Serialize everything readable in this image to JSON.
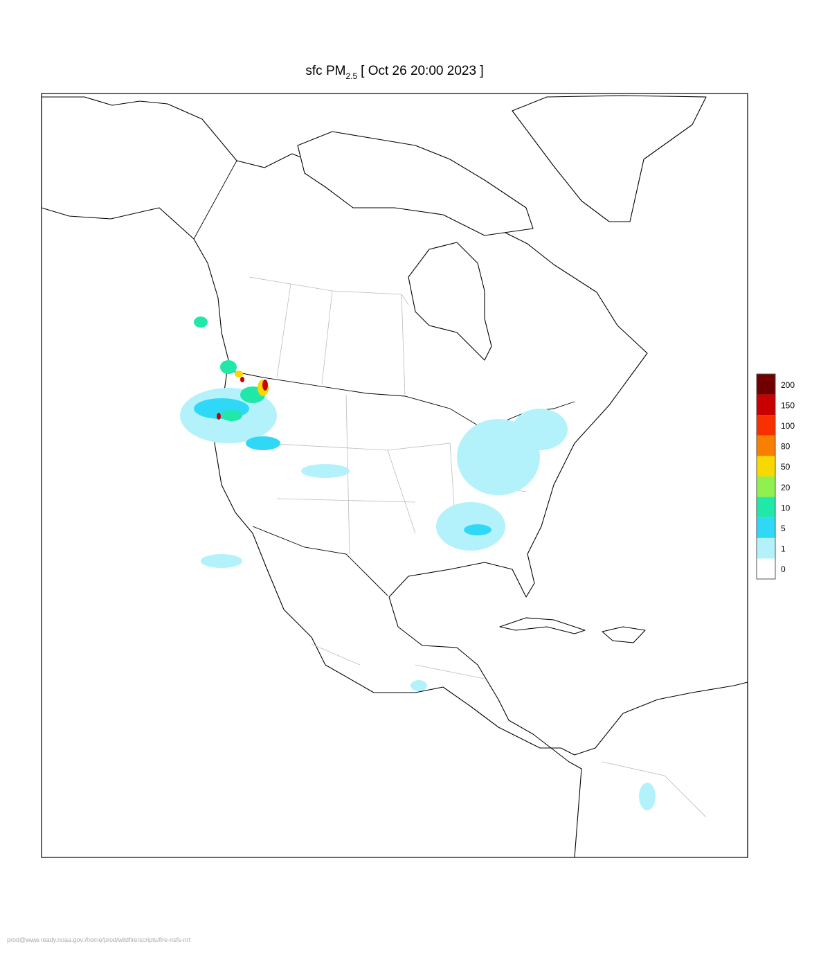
{
  "title": {
    "main": "sfc PM",
    "subscript": "2.5",
    "rest": "[ Oct 26 20:00 2023 ]"
  },
  "legend": {
    "levels": [
      0,
      1,
      5,
      10,
      20,
      50,
      80,
      100,
      150,
      200
    ],
    "colors": [
      "#ffffff",
      "#b3f2fb",
      "#30d8f8",
      "#20e8a8",
      "#90f050",
      "#f8d800",
      "#f88000",
      "#f83000",
      "#c80000",
      "#700000"
    ]
  },
  "footer": "prod@www.ready.noaa.gov:/home/prod/wildfire/scripts/fire-nsfs-nrt"
}
